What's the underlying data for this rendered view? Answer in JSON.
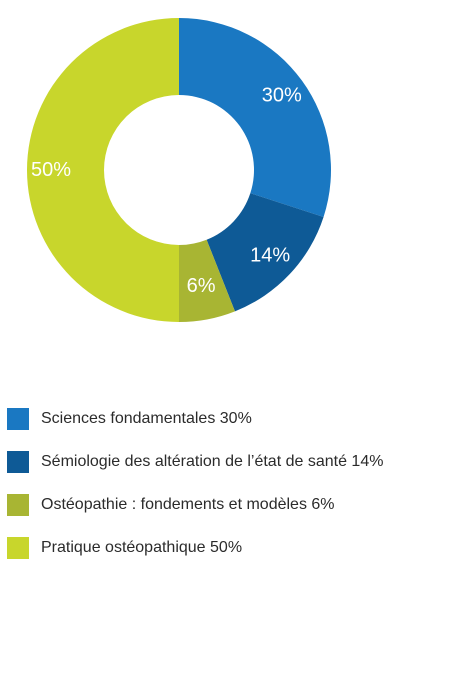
{
  "chart_data": {
    "type": "pie",
    "variant": "donut",
    "categories": [
      "Sciences fondamentales",
      "Sémiologie des altération de l’état de santé",
      "Ostéopathie : fondements et modèles",
      "Pratique ostéopathique"
    ],
    "values": [
      30,
      14,
      6,
      50
    ],
    "slice_labels": [
      "30%",
      "14%",
      "6%",
      "50%"
    ],
    "colors": [
      "#1a78c2",
      "#0e5a96",
      "#a8b533",
      "#c8d62c"
    ],
    "legend": [
      {
        "label": "Sciences fondamentales 30%",
        "color": "#1a78c2"
      },
      {
        "label": "Sémiologie des altération de l’état de santé 14%",
        "color": "#0e5a96"
      },
      {
        "label": "Ostéopathie : fondements et modèles 6%",
        "color": "#a8b533"
      },
      {
        "label": "Pratique ostéopathique 50%",
        "color": "#c8d62c"
      }
    ],
    "legend_position": "bottom-left",
    "title": ""
  }
}
